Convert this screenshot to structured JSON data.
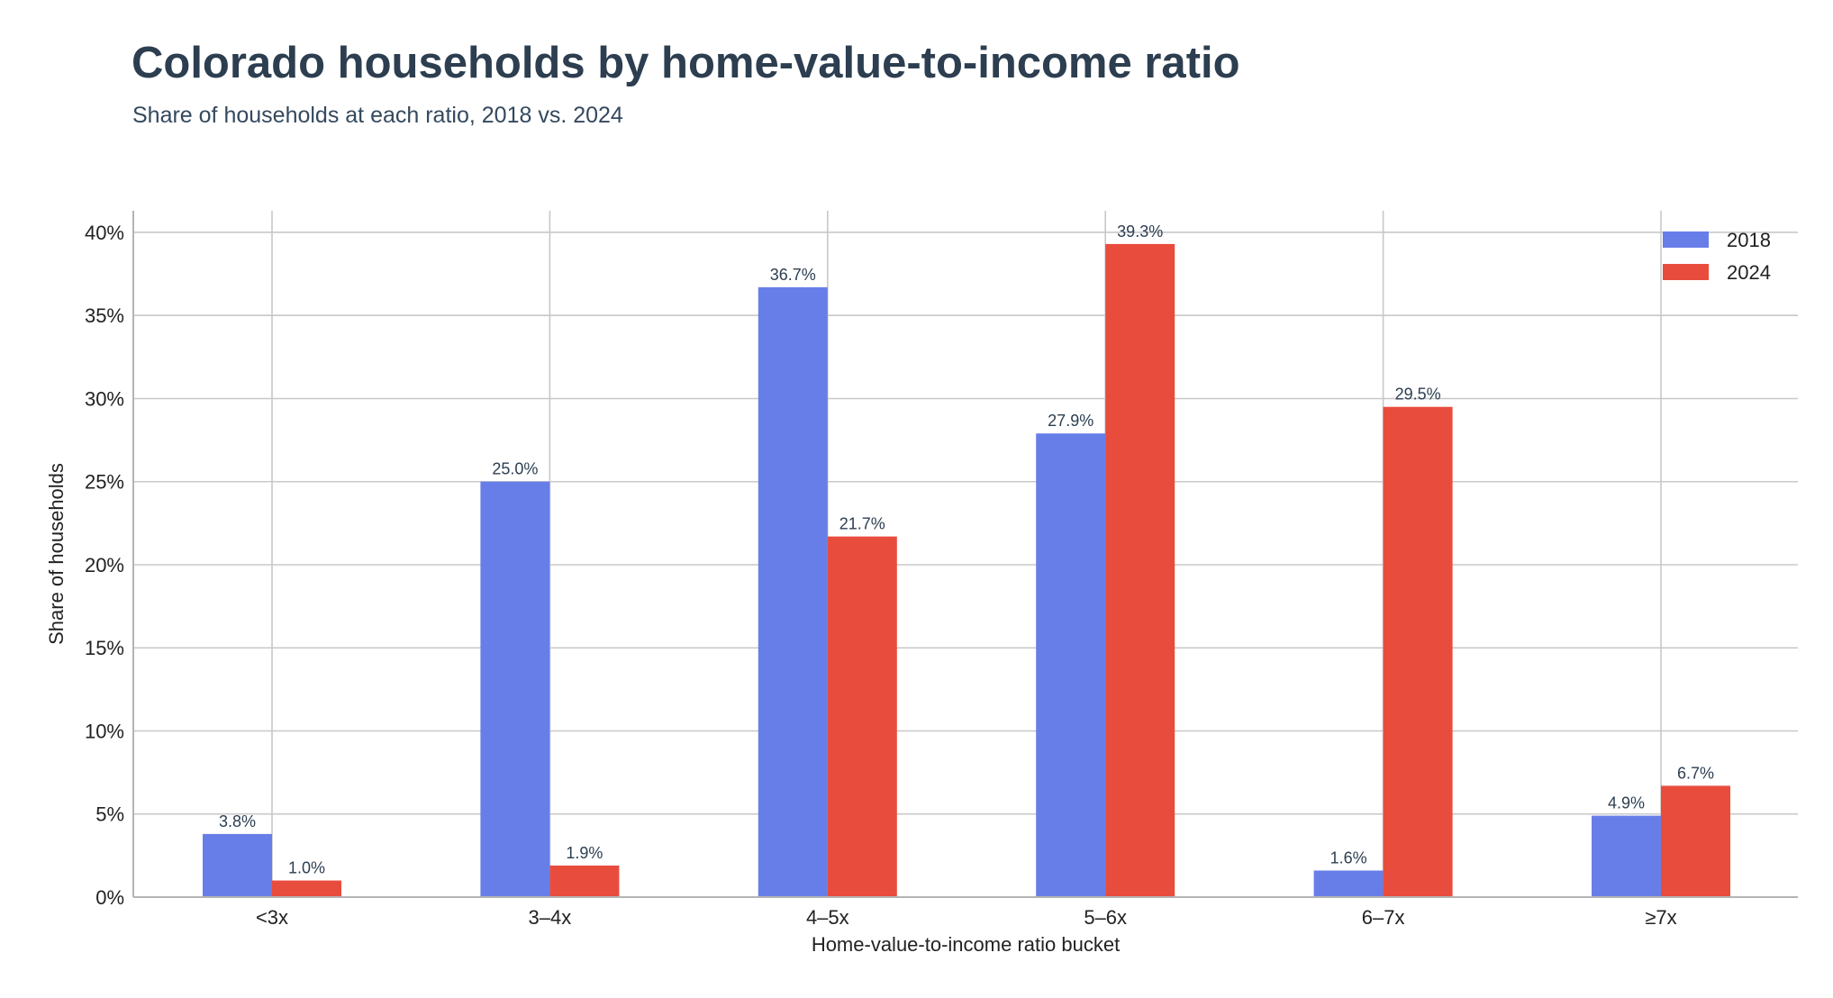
{
  "chart_data": {
    "type": "bar",
    "title": "Colorado households by home-value-to-income ratio",
    "subtitle": "Share of households at each ratio, 2018 vs. 2024",
    "xlabel": "Home-value-to-income ratio bucket",
    "ylabel": "Share of households",
    "categories": [
      "<3x",
      "3–4x",
      "4–5x",
      "5–6x",
      "6–7x",
      "≥7x"
    ],
    "series": [
      {
        "name": "2018",
        "color": "#677ee8",
        "values": [
          3.8,
          25.0,
          36.7,
          27.9,
          1.6,
          4.9
        ],
        "labels": [
          "3.8%",
          "25.0%",
          "36.7%",
          "27.9%",
          "1.6%",
          "4.9%"
        ]
      },
      {
        "name": "2024",
        "color": "#e84c3d",
        "values": [
          1.0,
          1.9,
          21.7,
          39.3,
          29.5,
          6.7
        ],
        "labels": [
          "1.0%",
          "1.9%",
          "21.7%",
          "39.3%",
          "29.5%",
          "6.7%"
        ]
      }
    ],
    "ylim": [
      0,
      41.3
    ],
    "yticks": [
      0,
      5,
      10,
      15,
      20,
      25,
      30,
      35,
      40
    ],
    "ytick_labels": [
      "0%",
      "5%",
      "10%",
      "15%",
      "20%",
      "25%",
      "30%",
      "35%",
      "40%"
    ],
    "grid": true,
    "legend_position": "top-right"
  }
}
